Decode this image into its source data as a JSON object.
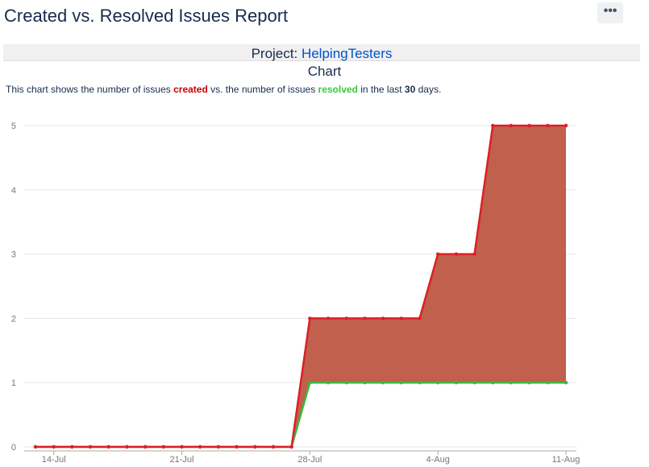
{
  "header": {
    "title": "Created vs. Resolved Issues Report",
    "more_icon": "more-icon",
    "more_label": "•••"
  },
  "project": {
    "label": "Project:",
    "name": "HelpingTesters"
  },
  "chart_heading": "Chart",
  "description": {
    "p1": "This chart shows the number of issues ",
    "created": "created",
    "p2": " vs. the number of issues ",
    "resolved": "resolved",
    "p3": " in the last ",
    "days": "30",
    "p4": " days."
  },
  "colors": {
    "created": "#dd1f26",
    "resolved": "#3cb73c",
    "fill": "#c0604d"
  },
  "chart_data": {
    "type": "area",
    "x": [
      "13-Jul",
      "14-Jul",
      "15-Jul",
      "16-Jul",
      "17-Jul",
      "18-Jul",
      "19-Jul",
      "20-Jul",
      "21-Jul",
      "22-Jul",
      "23-Jul",
      "24-Jul",
      "25-Jul",
      "26-Jul",
      "27-Jul",
      "28-Jul",
      "29-Jul",
      "30-Jul",
      "31-Jul",
      "1-Aug",
      "2-Aug",
      "3-Aug",
      "4-Aug",
      "5-Aug",
      "6-Aug",
      "7-Aug",
      "8-Aug",
      "9-Aug",
      "10-Aug",
      "11-Aug"
    ],
    "series": [
      {
        "name": "created",
        "values": [
          0,
          0,
          0,
          0,
          0,
          0,
          0,
          0,
          0,
          0,
          0,
          0,
          0,
          0,
          0,
          2,
          2,
          2,
          2,
          2,
          2,
          2,
          3,
          3,
          3,
          5,
          5,
          5,
          5,
          5
        ]
      },
      {
        "name": "resolved",
        "values": [
          0,
          0,
          0,
          0,
          0,
          0,
          0,
          0,
          0,
          0,
          0,
          0,
          0,
          0,
          0,
          1,
          1,
          1,
          1,
          1,
          1,
          1,
          1,
          1,
          1,
          1,
          1,
          1,
          1,
          1
        ]
      }
    ],
    "xticks": [
      "14-Jul",
      "21-Jul",
      "28-Jul",
      "4-Aug",
      "11-Aug"
    ],
    "yticks": [
      0,
      1,
      2,
      3,
      4,
      5
    ],
    "ylim": [
      0,
      5
    ],
    "grid": true
  }
}
